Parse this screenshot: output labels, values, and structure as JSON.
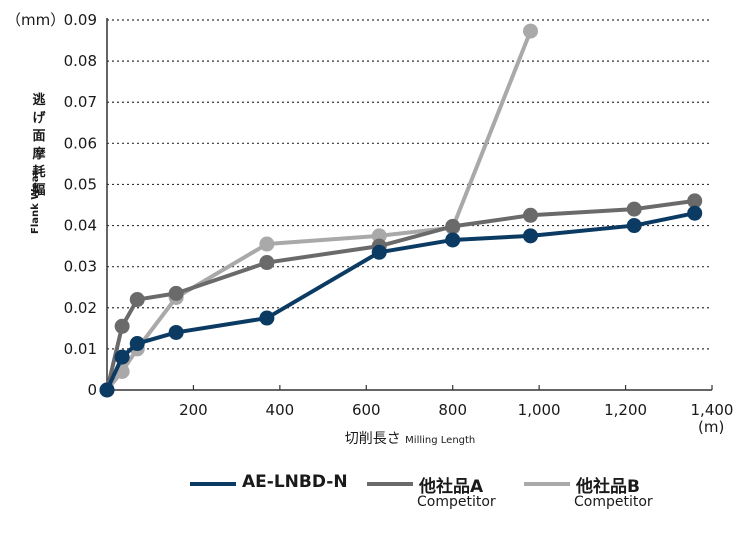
{
  "chart_data": {
    "type": "line",
    "y_unit": "（mm）",
    "x_unit": "(m)",
    "ylabel_jp": "逃げ面摩耗幅",
    "ylabel_en": "Flank Wear",
    "xlabel_jp": "切削長さ",
    "xlabel_en": "Milling Length",
    "xlim": [
      0,
      1400
    ],
    "ylim": [
      0,
      0.09
    ],
    "grid": "horizontal dotted",
    "x_ticks": [
      {
        "value": 0,
        "label": ""
      },
      {
        "value": 200,
        "label": "200"
      },
      {
        "value": 400,
        "label": "400"
      },
      {
        "value": 600,
        "label": "600"
      },
      {
        "value": 800,
        "label": "800"
      },
      {
        "value": 1000,
        "label": "1,000"
      },
      {
        "value": 1200,
        "label": "1,200"
      },
      {
        "value": 1400,
        "label": "1,400"
      }
    ],
    "y_ticks": [
      {
        "value": 0,
        "label": "0"
      },
      {
        "value": 0.01,
        "label": "0.01"
      },
      {
        "value": 0.02,
        "label": "0.02"
      },
      {
        "value": 0.03,
        "label": "0.03"
      },
      {
        "value": 0.04,
        "label": "0.04"
      },
      {
        "value": 0.05,
        "label": "0.05"
      },
      {
        "value": 0.06,
        "label": "0.06"
      },
      {
        "value": 0.07,
        "label": "0.07"
      },
      {
        "value": 0.08,
        "label": "0.08"
      },
      {
        "value": 0.09,
        "label": "0.09"
      }
    ],
    "series": [
      {
        "name": "他社品B",
        "subtitle": "Competitor",
        "color": "#a9a9a9",
        "x": [
          0,
          35,
          70,
          160,
          370,
          630,
          800,
          980
        ],
        "y": [
          0,
          0.0045,
          0.01,
          0.0225,
          0.0355,
          0.0375,
          0.0395,
          0.0873
        ]
      },
      {
        "name": "他社品A",
        "subtitle": "Competitor",
        "color": "#6a6a6a",
        "x": [
          0,
          35,
          70,
          160,
          370,
          630,
          800,
          980,
          1220,
          1360
        ],
        "y": [
          0,
          0.0155,
          0.022,
          0.0235,
          0.031,
          0.035,
          0.0398,
          0.0425,
          0.044,
          0.046
        ]
      },
      {
        "name": "AE-LNBD-N",
        "subtitle": "",
        "color": "#0b3a63",
        "x": [
          0,
          35,
          70,
          160,
          370,
          630,
          800,
          980,
          1220,
          1360
        ],
        "y": [
          0,
          0.008,
          0.0113,
          0.014,
          0.0175,
          0.0335,
          0.0365,
          0.0375,
          0.04,
          0.043
        ]
      }
    ]
  },
  "legend": [
    {
      "label": "AE-LNBD-N",
      "sub": "",
      "color": "#0b3a63"
    },
    {
      "label": "他社品A",
      "sub": "Competitor",
      "color": "#6a6a6a"
    },
    {
      "label": "他社品B",
      "sub": "Competitor",
      "color": "#a9a9a9"
    }
  ]
}
